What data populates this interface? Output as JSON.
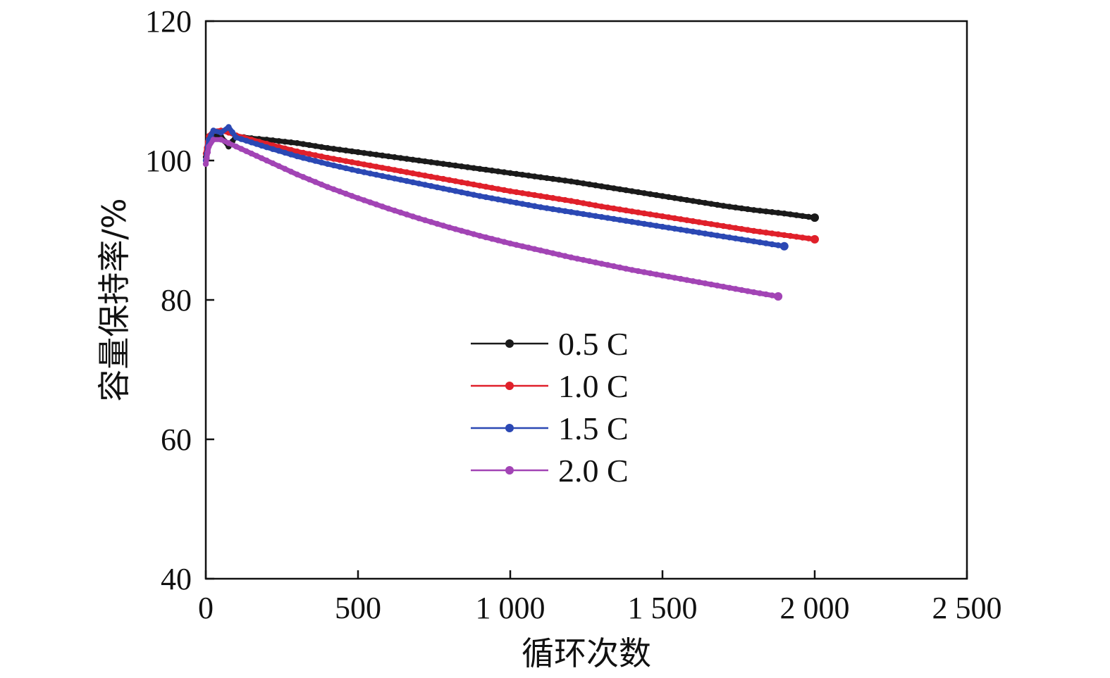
{
  "chart_data": {
    "type": "line",
    "title": "",
    "xlabel": "循环次数",
    "ylabel": "容量保持率/%",
    "xlim": [
      0,
      2500
    ],
    "ylim": [
      40,
      120
    ],
    "x_ticks": [
      0,
      500,
      1000,
      1500,
      2000,
      2500
    ],
    "x_tick_labels": [
      "0",
      "500",
      "1 000",
      "1 500",
      "2 000",
      "2 500"
    ],
    "y_ticks": [
      40,
      60,
      80,
      100,
      120
    ],
    "y_tick_labels": [
      "40",
      "60",
      "80",
      "100",
      "120"
    ],
    "grid": false,
    "legend_position": "center",
    "series": [
      {
        "name": "0.5 C",
        "color": "#1a1a1a",
        "x": [
          0,
          10,
          25,
          50,
          75,
          100,
          150,
          200,
          300,
          400,
          500,
          600,
          700,
          800,
          900,
          1000,
          1100,
          1200,
          1300,
          1400,
          1500,
          1600,
          1700,
          1800,
          1900,
          2000
        ],
        "y": [
          100.5,
          102.5,
          103.5,
          103.5,
          102.0,
          103.5,
          103.2,
          103.0,
          102.5,
          101.8,
          101.2,
          100.6,
          100.0,
          99.4,
          98.8,
          98.2,
          97.6,
          97.0,
          96.3,
          95.6,
          94.9,
          94.2,
          93.5,
          92.9,
          92.4,
          91.8
        ]
      },
      {
        "name": "1.0 C",
        "color": "#e0202a",
        "x": [
          0,
          10,
          25,
          50,
          75,
          100,
          150,
          200,
          300,
          400,
          500,
          600,
          700,
          800,
          900,
          1000,
          1100,
          1200,
          1300,
          1400,
          1500,
          1600,
          1700,
          1800,
          1900,
          2000
        ],
        "y": [
          101.0,
          103.5,
          104.2,
          104.3,
          104.0,
          103.6,
          103.0,
          102.4,
          101.3,
          100.4,
          99.6,
          98.8,
          98.0,
          97.2,
          96.4,
          95.6,
          94.9,
          94.2,
          93.4,
          92.7,
          92.0,
          91.3,
          90.6,
          89.9,
          89.3,
          88.7
        ]
      },
      {
        "name": "1.5 C",
        "color": "#2b48b4",
        "x": [
          0,
          10,
          25,
          50,
          75,
          100,
          150,
          200,
          300,
          400,
          500,
          600,
          700,
          800,
          900,
          1000,
          1100,
          1200,
          1300,
          1400,
          1500,
          1600,
          1700,
          1800,
          1900
        ],
        "y": [
          100.0,
          103.0,
          104.3,
          104.0,
          104.8,
          103.3,
          102.6,
          101.9,
          100.6,
          99.5,
          98.5,
          97.6,
          96.7,
          95.8,
          94.9,
          94.1,
          93.3,
          92.6,
          91.9,
          91.2,
          90.5,
          89.8,
          89.1,
          88.4,
          87.7
        ]
      },
      {
        "name": "2.0 C",
        "color": "#a244b5",
        "x": [
          0,
          10,
          25,
          50,
          75,
          100,
          150,
          200,
          300,
          400,
          500,
          600,
          700,
          800,
          900,
          1000,
          1100,
          1200,
          1300,
          1400,
          1500,
          1600,
          1700,
          1800,
          1880
        ],
        "y": [
          99.5,
          102.0,
          103.0,
          103.0,
          102.5,
          102.0,
          101.0,
          100.0,
          98.0,
          96.2,
          94.6,
          93.1,
          91.7,
          90.4,
          89.2,
          88.1,
          87.1,
          86.1,
          85.2,
          84.3,
          83.5,
          82.7,
          81.9,
          81.1,
          80.5
        ]
      }
    ]
  }
}
